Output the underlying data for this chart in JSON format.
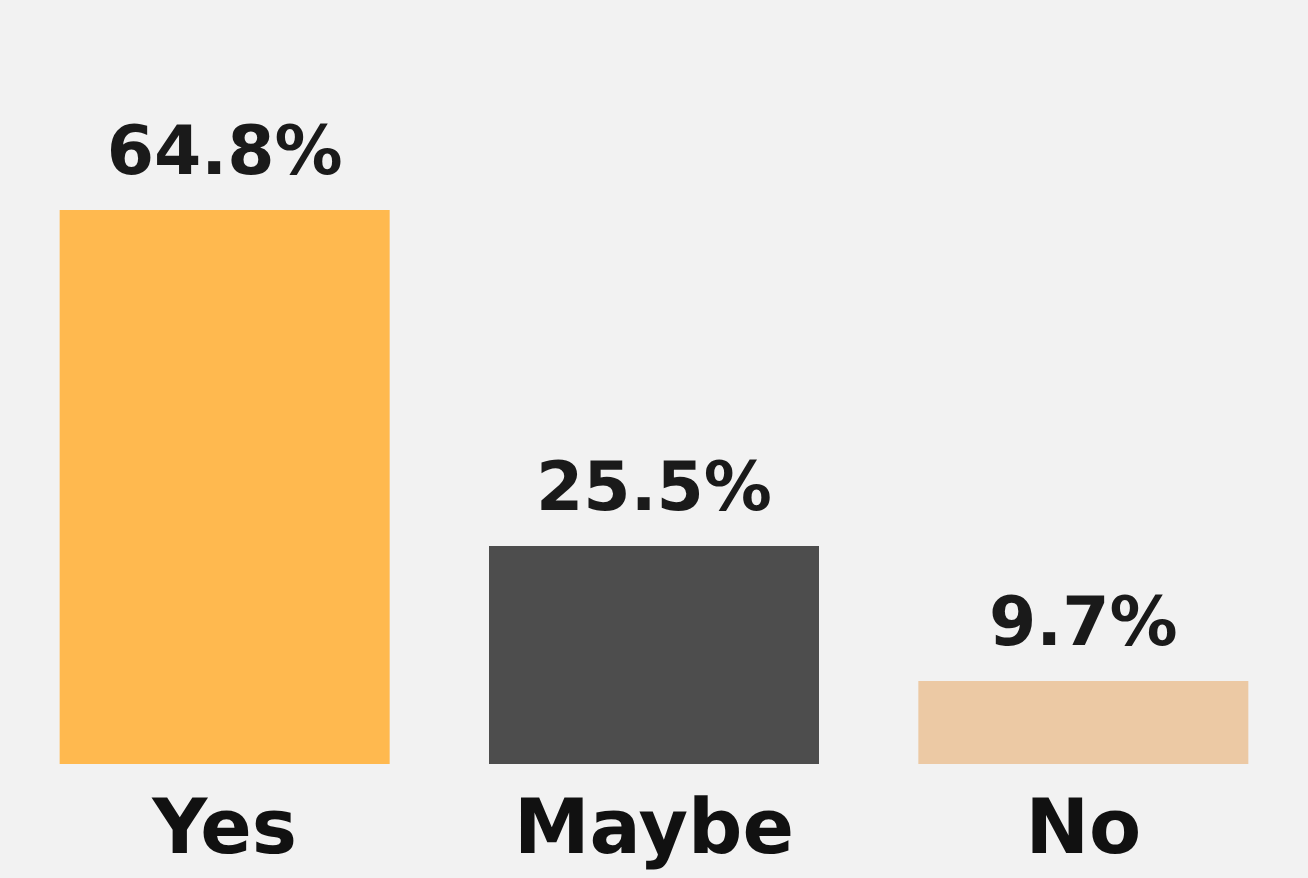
{
  "chart_data": {
    "type": "bar",
    "categories": [
      "Yes",
      "Maybe",
      "No"
    ],
    "values": [
      64.8,
      25.5,
      9.7
    ],
    "colors": [
      "#ffb94f",
      "#4d4d4d",
      "#ecc9a4"
    ],
    "value_labels": [
      "64.8%",
      "25.5%",
      "9.7%"
    ]
  }
}
